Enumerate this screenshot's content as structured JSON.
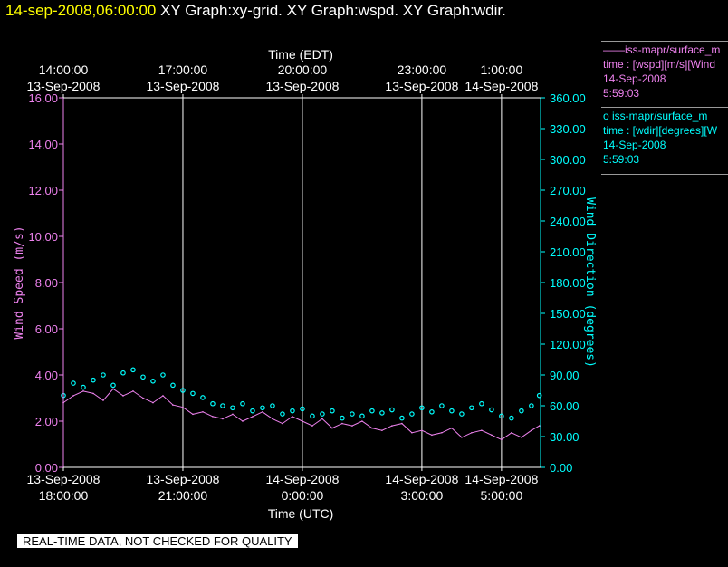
{
  "header": {
    "timestamp": "14-sep-2008,06:00:00",
    "graphs": "XY Graph:xy-grid.  XY Graph:wspd.  XY Graph:wdir."
  },
  "colors": {
    "background": "#000000",
    "wspd": "#ee82ee",
    "wdir": "#00ffff",
    "axis_text": "#ffffff",
    "grid": "#ffffff",
    "title_time": "#ffff00"
  },
  "legend": [
    {
      "line1": "——iss-mapr/surface_m",
      "line2": "time : [wspd][m/s][Wind",
      "line3": "14-Sep-2008",
      "line4": "5:59:03"
    },
    {
      "line1": "o  iss-mapr/surface_m",
      "line2": "time : [wdir][degrees][W",
      "line3": "14-Sep-2008",
      "line4": "5:59:03"
    }
  ],
  "banner": "REAL-TIME DATA, NOT CHECKED FOR QUALITY",
  "chart_data": {
    "type": "line",
    "top_axis_title": "Time (EDT)",
    "bottom_axis_title": "Time (UTC)",
    "ylabel_left": "Wind Speed (m/s)",
    "ylabel_right": "Wind Direction (degrees)",
    "x_hours_range": [
      0,
      11.98
    ],
    "ylim_left": [
      0,
      16
    ],
    "ylim_right": [
      0,
      360
    ],
    "left_ticks": [
      "0.00",
      "2.00",
      "4.00",
      "6.00",
      "8.00",
      "10.00",
      "12.00",
      "14.00",
      "16.00"
    ],
    "right_ticks": [
      "0.00",
      "30.00",
      "60.00",
      "90.00",
      "120.00",
      "150.00",
      "180.00",
      "210.00",
      "240.00",
      "270.00",
      "300.00",
      "330.00",
      "360.00"
    ],
    "top_ticks": [
      {
        "hour": 0,
        "time": "14:00:00",
        "date": "13-Sep-2008"
      },
      {
        "hour": 3,
        "time": "17:00:00",
        "date": "13-Sep-2008"
      },
      {
        "hour": 6,
        "time": "20:00:00",
        "date": "13-Sep-2008"
      },
      {
        "hour": 9,
        "time": "23:00:00",
        "date": "13-Sep-2008"
      },
      {
        "hour": 11,
        "time": "1:00:00",
        "date": "14-Sep-2008"
      }
    ],
    "bottom_ticks": [
      {
        "hour": 0,
        "date": "13-Sep-2008",
        "time": "18:00:00"
      },
      {
        "hour": 3,
        "date": "13-Sep-2008",
        "time": "21:00:00"
      },
      {
        "hour": 6,
        "date": "14-Sep-2008",
        "time": "0:00:00"
      },
      {
        "hour": 9,
        "date": "14-Sep-2008",
        "time": "3:00:00"
      },
      {
        "hour": 11,
        "date": "14-Sep-2008",
        "time": "5:00:00"
      }
    ],
    "series": [
      {
        "name": "wspd",
        "x": [
          0,
          0.25,
          0.5,
          0.75,
          1,
          1.25,
          1.5,
          1.75,
          2,
          2.25,
          2.5,
          2.75,
          3,
          3.25,
          3.5,
          3.75,
          4,
          4.25,
          4.5,
          4.75,
          5,
          5.25,
          5.5,
          5.75,
          6,
          6.25,
          6.5,
          6.75,
          7,
          7.25,
          7.5,
          7.75,
          8,
          8.25,
          8.5,
          8.75,
          9,
          9.25,
          9.5,
          9.75,
          10,
          10.25,
          10.5,
          10.75,
          11,
          11.25,
          11.5,
          11.75,
          11.95
        ],
        "y": [
          2.8,
          3.1,
          3.3,
          3.2,
          2.9,
          3.4,
          3.1,
          3.3,
          3.0,
          2.8,
          3.1,
          2.7,
          2.6,
          2.3,
          2.4,
          2.2,
          2.1,
          2.3,
          2.0,
          2.2,
          2.4,
          2.1,
          1.9,
          2.2,
          2.0,
          1.8,
          2.1,
          1.7,
          1.9,
          1.8,
          2.0,
          1.7,
          1.6,
          1.8,
          1.9,
          1.5,
          1.6,
          1.4,
          1.5,
          1.7,
          1.3,
          1.5,
          1.6,
          1.4,
          1.2,
          1.5,
          1.3,
          1.6,
          1.8
        ]
      },
      {
        "name": "wdir",
        "x": [
          0,
          0.25,
          0.5,
          0.75,
          1,
          1.25,
          1.5,
          1.75,
          2,
          2.25,
          2.5,
          2.75,
          3,
          3.25,
          3.5,
          3.75,
          4,
          4.25,
          4.5,
          4.75,
          5,
          5.25,
          5.5,
          5.75,
          6,
          6.25,
          6.5,
          6.75,
          7,
          7.25,
          7.5,
          7.75,
          8,
          8.25,
          8.5,
          8.75,
          9,
          9.25,
          9.5,
          9.75,
          10,
          10.25,
          10.5,
          10.75,
          11,
          11.25,
          11.5,
          11.75,
          11.95
        ],
        "y": [
          70,
          82,
          78,
          85,
          90,
          80,
          92,
          95,
          88,
          84,
          90,
          80,
          75,
          72,
          68,
          62,
          60,
          58,
          62,
          55,
          58,
          60,
          52,
          55,
          57,
          50,
          52,
          55,
          48,
          52,
          50,
          55,
          53,
          56,
          48,
          52,
          58,
          54,
          60,
          55,
          52,
          58,
          62,
          56,
          50,
          48,
          55,
          60,
          70
        ]
      }
    ]
  }
}
